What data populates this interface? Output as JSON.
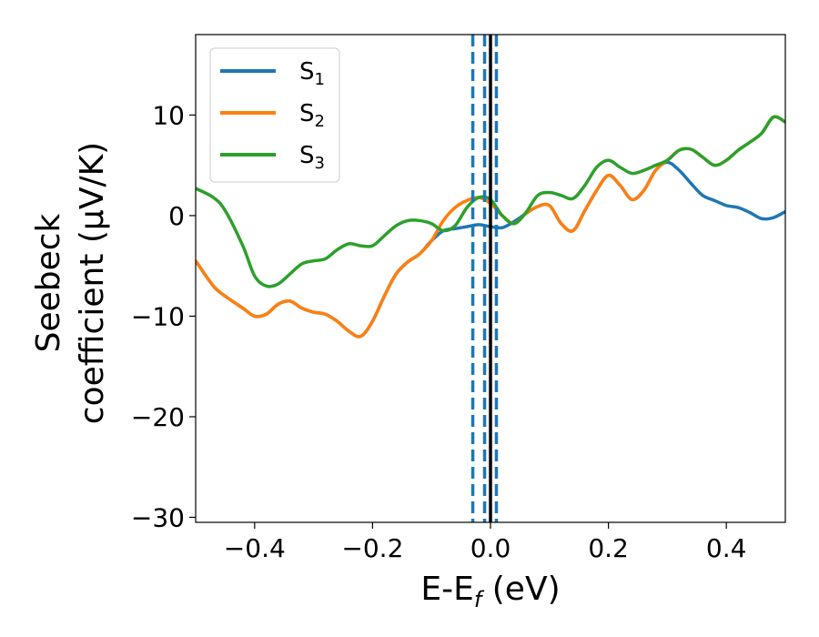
{
  "chart_data": {
    "type": "line",
    "xlabel": "E-E",
    "xlabel_sub": "f",
    "xlabel_unit": " (eV)",
    "ylabel_line1": "Seebeck",
    "ylabel_line2": "coefficient  (μV/K)",
    "xlim": [
      -0.5,
      0.5
    ],
    "ylim": [
      -30.5,
      18
    ],
    "x_ticks": [
      -0.4,
      -0.2,
      0.0,
      0.2,
      0.4
    ],
    "x_tick_labels": [
      "−0.4",
      "−0.2",
      "0.0",
      "0.2",
      "0.4"
    ],
    "y_ticks": [
      10,
      0,
      -10,
      -20,
      -30
    ],
    "y_tick_labels": [
      "10",
      "0",
      "−10",
      "−20",
      "−30"
    ],
    "grid": false,
    "legend_position": "top-left",
    "vlines": [
      {
        "x": 0.0,
        "style": "solid",
        "color": "#000000"
      },
      {
        "x": -0.03,
        "style": "dashed",
        "color": "#1f77b4"
      },
      {
        "x": -0.01,
        "style": "dashed",
        "color": "#1f77b4"
      },
      {
        "x": 0.01,
        "style": "dashed",
        "color": "#1f77b4"
      }
    ],
    "series": [
      {
        "name": "S",
        "sub": "1",
        "color": "#1f77b4",
        "x": [
          -0.5,
          -0.47,
          -0.45,
          -0.42,
          -0.4,
          -0.38,
          -0.36,
          -0.34,
          -0.32,
          -0.3,
          -0.28,
          -0.26,
          -0.24,
          -0.22,
          -0.2,
          -0.18,
          -0.16,
          -0.14,
          -0.12,
          -0.1,
          -0.08,
          -0.06,
          -0.04,
          -0.02,
          0.0,
          0.02,
          0.04,
          0.06,
          0.08,
          0.1,
          0.12,
          0.14,
          0.16,
          0.18,
          0.2,
          0.22,
          0.24,
          0.26,
          0.28,
          0.3,
          0.32,
          0.34,
          0.36,
          0.38,
          0.4,
          0.42,
          0.44,
          0.46,
          0.48,
          0.5
        ],
        "y": [
          -4.5,
          -7.0,
          -8.0,
          -9.2,
          -10.0,
          -9.8,
          -8.8,
          -8.5,
          -9.2,
          -9.6,
          -9.8,
          -10.5,
          -11.5,
          -12.0,
          -10.5,
          -8.0,
          -5.8,
          -4.6,
          -3.8,
          -2.5,
          -1.5,
          -1.3,
          -1.1,
          -0.9,
          -1.1,
          -1.2,
          -0.6,
          0.2,
          0.9,
          1.0,
          -0.8,
          -1.5,
          0.5,
          2.5,
          4.0,
          3.0,
          1.6,
          2.5,
          4.5,
          5.3,
          4.5,
          3.2,
          2.0,
          1.5,
          1.0,
          0.8,
          0.3,
          -0.3,
          -0.2,
          0.4
        ]
      },
      {
        "name": "S",
        "sub": "2",
        "color": "#ff7f0e",
        "x": [
          -0.5,
          -0.47,
          -0.45,
          -0.42,
          -0.4,
          -0.38,
          -0.36,
          -0.34,
          -0.32,
          -0.3,
          -0.28,
          -0.26,
          -0.24,
          -0.22,
          -0.2,
          -0.18,
          -0.16,
          -0.14,
          -0.12,
          -0.1,
          -0.08,
          -0.06,
          -0.04,
          -0.02,
          0.0,
          0.02,
          0.04,
          0.06,
          0.08,
          0.1,
          0.12,
          0.14,
          0.16,
          0.18,
          0.2,
          0.22,
          0.24,
          0.26,
          0.28,
          0.3,
          0.32,
          0.34,
          0.36,
          0.38,
          0.4,
          0.42,
          0.44,
          0.46,
          0.48,
          0.5
        ],
        "y": [
          -4.5,
          -7.0,
          -8.0,
          -9.2,
          -10.0,
          -9.8,
          -8.8,
          -8.5,
          -9.2,
          -9.6,
          -9.8,
          -10.5,
          -11.5,
          -12.0,
          -10.5,
          -8.0,
          -5.8,
          -4.6,
          -3.8,
          -2.5,
          -0.5,
          0.8,
          1.5,
          1.8,
          1.2,
          0.0,
          -0.8,
          0.2,
          0.9,
          1.0,
          -0.8,
          -1.5,
          0.5,
          2.5,
          4.0,
          3.0,
          1.6,
          2.5,
          4.5,
          5.5,
          6.5,
          6.6,
          5.8,
          5.0,
          5.5,
          6.5,
          7.3,
          8.2,
          9.8,
          9.3
        ]
      },
      {
        "name": "S",
        "sub": "3",
        "color": "#2ca02c",
        "x": [
          -0.5,
          -0.47,
          -0.45,
          -0.42,
          -0.4,
          -0.38,
          -0.36,
          -0.34,
          -0.32,
          -0.3,
          -0.28,
          -0.26,
          -0.24,
          -0.22,
          -0.2,
          -0.18,
          -0.16,
          -0.14,
          -0.12,
          -0.1,
          -0.08,
          -0.06,
          -0.04,
          -0.02,
          0.0,
          0.02,
          0.04,
          0.06,
          0.08,
          0.1,
          0.12,
          0.14,
          0.16,
          0.18,
          0.2,
          0.22,
          0.24,
          0.26,
          0.28,
          0.3,
          0.32,
          0.34,
          0.36,
          0.38,
          0.4,
          0.42,
          0.44,
          0.46,
          0.48,
          0.5
        ],
        "y": [
          2.7,
          1.8,
          0.5,
          -3.0,
          -6.0,
          -7.0,
          -6.8,
          -5.8,
          -4.8,
          -4.5,
          -4.3,
          -3.4,
          -2.8,
          -3.0,
          -3.0,
          -2.0,
          -1.0,
          -0.5,
          -0.5,
          -0.8,
          -1.5,
          -1.0,
          0.8,
          1.8,
          1.6,
          0.0,
          -0.8,
          0.3,
          2.0,
          2.3,
          2.0,
          1.7,
          3.0,
          4.8,
          5.5,
          4.8,
          4.2,
          4.5,
          5.0,
          5.5,
          6.5,
          6.6,
          5.8,
          5.0,
          5.5,
          6.5,
          7.3,
          8.2,
          9.8,
          9.3
        ]
      }
    ]
  }
}
